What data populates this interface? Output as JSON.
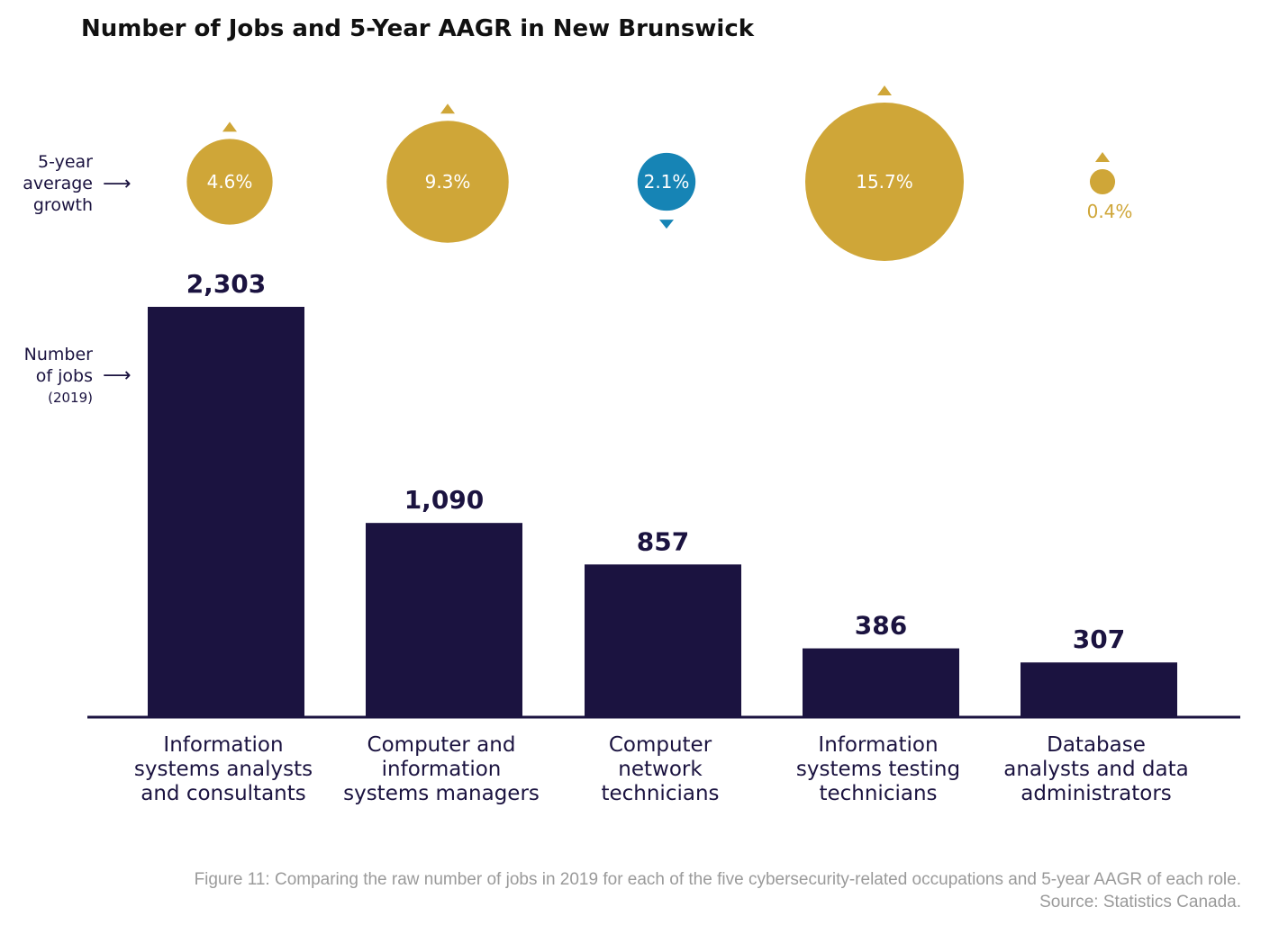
{
  "chart_data": {
    "type": "bar",
    "title": "Number of Jobs and 5-Year AAGR in New Brunswick",
    "growth_row_label": [
      "5-year",
      "average",
      "growth"
    ],
    "jobs_row_label": [
      "Number",
      "of jobs"
    ],
    "jobs_row_sublabel": "(2019)",
    "arrow_glyph": "⟶",
    "categories": [
      [
        "Information",
        "systems analysts",
        "and consultants"
      ],
      [
        "Computer and",
        "information",
        "systems managers"
      ],
      [
        "Computer",
        "network",
        "technicians"
      ],
      [
        "Information",
        "systems testing",
        "technicians"
      ],
      [
        "Database",
        "analysts and data",
        "administrators"
      ]
    ],
    "series": [
      {
        "name": "Number of jobs (2019)",
        "values": [
          2303,
          1090,
          857,
          386,
          307
        ],
        "value_labels": [
          "2,303",
          "1,090",
          "857",
          "386",
          "307"
        ]
      },
      {
        "name": "5-year average growth (%)",
        "values": [
          4.6,
          9.3,
          2.1,
          15.7,
          0.4
        ],
        "value_labels": [
          "4.6%",
          "9.3%",
          "2.1%",
          "15.7%",
          "0.4%"
        ],
        "direction": [
          "up",
          "up",
          "down",
          "up",
          "up"
        ]
      }
    ],
    "ylim": [
      0,
      2500
    ],
    "grid": false,
    "colors": {
      "bar": "#1b1340",
      "growth_up": "#cfa638",
      "growth_down": "#1684b5"
    }
  },
  "caption": {
    "line1": "Figure 11: Comparing the raw number of jobs in 2019 for each of the five cybersecurity-related occupations and 5-year AAGR of each role.",
    "line2": "Source: Statistics Canada."
  }
}
